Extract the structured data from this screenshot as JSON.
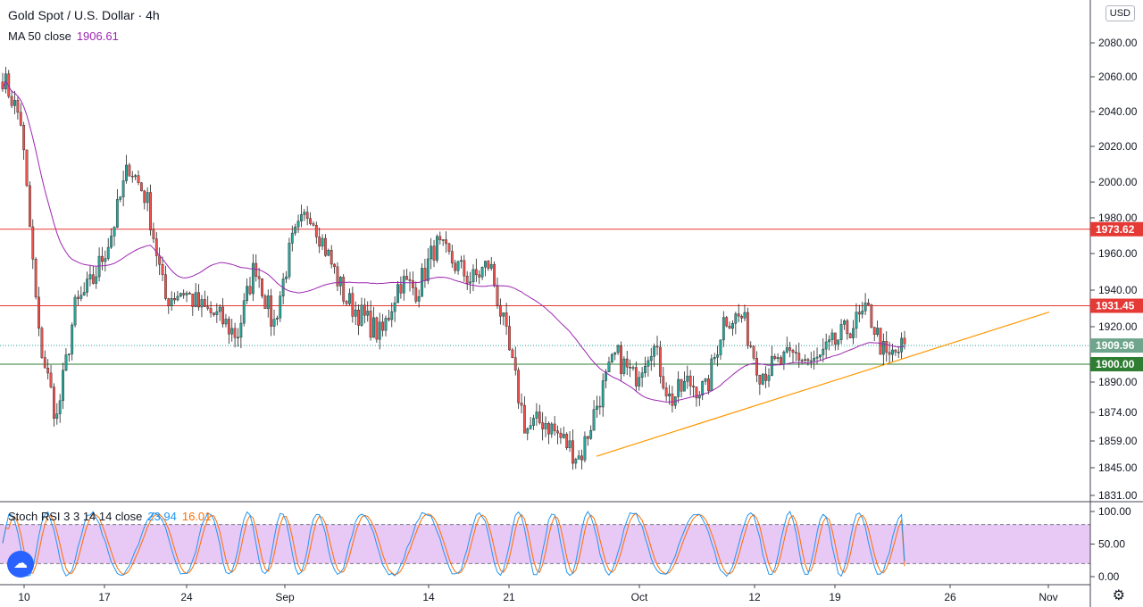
{
  "header": {
    "symbol": "Gold Spot",
    "separator": "/",
    "quote": "U.S. Dollar",
    "interval": "4h",
    "ma_label": "MA 50 close",
    "ma_value": "1906.61",
    "currency_button": "USD"
  },
  "stoch_legend": {
    "label": "Stoch RSI 3 3 14 14 close",
    "k_value": "23.94",
    "d_value": "16.01"
  },
  "icons": {
    "settings": "gear-icon",
    "logo": "tradingview-logo-icon"
  },
  "colors": {
    "up": "#26a69a",
    "down": "#ef5350",
    "ma": "#9c27b0",
    "hline_red": "#e53935",
    "hline_green": "#2e7d32",
    "trendline": "#ff9800",
    "stoch_k": "#2196f3",
    "stoch_d": "#ff6d00",
    "stoch_band": "#e8c8f5"
  },
  "chart_data": {
    "type": "candlestick",
    "title": "Gold Spot / U.S. Dollar · 4h",
    "yticks": [
      "1831.00",
      "1845.00",
      "1859.00",
      "1874.00",
      "1890.00",
      "1900.00",
      "1920.00",
      "1940.00",
      "1960.00",
      "1980.00",
      "2000.00",
      "2020.00",
      "2040.00",
      "2060.00",
      "2080.00"
    ],
    "ylim": [
      1831,
      2090
    ],
    "xticks": [
      "10",
      "17",
      "24",
      "Sep",
      "14",
      "21",
      "Oct",
      "12",
      "19",
      "26",
      "Nov"
    ],
    "price_labels": [
      {
        "text": "1973.62",
        "value": 1973.62,
        "color": "#e53935"
      },
      {
        "text": "1931.45",
        "value": 1931.45,
        "color": "#e53935"
      },
      {
        "text": "1909.96",
        "value": 1909.96,
        "color": "#6fa58c"
      },
      {
        "text": "1900.00",
        "value": 1900.0,
        "color": "#2e7d32"
      }
    ],
    "horizontal_lines": [
      1973.62,
      1931.45,
      1900.0
    ],
    "current_price": 1909.96,
    "trendline": {
      "from": {
        "date": "Sep 28",
        "price": 1851
      },
      "to": {
        "date": "Nov 1",
        "price": 1928
      }
    },
    "anchors": [
      {
        "date": "Aug 10",
        "close": 2060
      },
      {
        "date": "Aug 11",
        "close": 2035
      },
      {
        "date": "Aug 12",
        "close": 1915
      },
      {
        "date": "Aug 12b",
        "close": 1870
      },
      {
        "date": "Aug 13",
        "close": 1930
      },
      {
        "date": "Aug 14",
        "close": 1945
      },
      {
        "date": "Aug 17",
        "close": 1970
      },
      {
        "date": "Aug 18",
        "close": 2010
      },
      {
        "date": "Aug 19",
        "close": 1990
      },
      {
        "date": "Aug 20",
        "close": 1935
      },
      {
        "date": "Aug 21",
        "close": 1940
      },
      {
        "date": "Aug 24",
        "close": 1930
      },
      {
        "date": "Aug 25",
        "close": 1925
      },
      {
        "date": "Aug 26",
        "close": 1915
      },
      {
        "date": "Aug 27",
        "close": 1955
      },
      {
        "date": "Aug 28",
        "close": 1920
      },
      {
        "date": "Aug 31",
        "close": 1965
      },
      {
        "date": "Sep 01",
        "close": 1985
      },
      {
        "date": "Sep 02",
        "close": 1960
      },
      {
        "date": "Sep 03",
        "close": 1935
      },
      {
        "date": "Sep 07",
        "close": 1925
      },
      {
        "date": "Sep 09",
        "close": 1915
      },
      {
        "date": "Sep 10",
        "close": 1945
      },
      {
        "date": "Sep 14",
        "close": 1940
      },
      {
        "date": "Sep 16",
        "close": 1965
      },
      {
        "date": "Sep 17",
        "close": 1955
      },
      {
        "date": "Sep 18",
        "close": 1945
      },
      {
        "date": "Sep 21",
        "close": 1955
      },
      {
        "date": "Sep 22",
        "close": 1910
      },
      {
        "date": "Sep 23",
        "close": 1865
      },
      {
        "date": "Sep 24",
        "close": 1870
      },
      {
        "date": "Sep 25",
        "close": 1860
      },
      {
        "date": "Sep 28",
        "close": 1850
      },
      {
        "date": "Sep 29",
        "close": 1880
      },
      {
        "date": "Oct 01",
        "close": 1905
      },
      {
        "date": "Oct 02",
        "close": 1892
      },
      {
        "date": "Oct 05",
        "close": 1912
      },
      {
        "date": "Oct 06",
        "close": 1880
      },
      {
        "date": "Oct 07",
        "close": 1890
      },
      {
        "date": "Oct 08",
        "close": 1885
      },
      {
        "date": "Oct 09",
        "close": 1925
      },
      {
        "date": "Oct 12",
        "close": 1925
      },
      {
        "date": "Oct 13",
        "close": 1895
      },
      {
        "date": "Oct 14",
        "close": 1900
      },
      {
        "date": "Oct 15",
        "close": 1905
      },
      {
        "date": "Oct 16",
        "close": 1900
      },
      {
        "date": "Oct 19",
        "close": 1910
      },
      {
        "date": "Oct 20",
        "close": 1920
      },
      {
        "date": "Oct 21",
        "close": 1928
      },
      {
        "date": "Oct 22",
        "close": 1902
      },
      {
        "date": "Oct 23",
        "close": 1910
      }
    ],
    "ma": {
      "label": "MA 50 close",
      "value": 1906.61
    },
    "indicator": {
      "name": "Stoch RSI 3 3 14 14 close",
      "k": 23.94,
      "d": 16.01,
      "yticks": [
        "0.00",
        "50.00",
        "100.00"
      ],
      "ylim": [
        0,
        100
      ],
      "bands": [
        20,
        80
      ]
    }
  }
}
